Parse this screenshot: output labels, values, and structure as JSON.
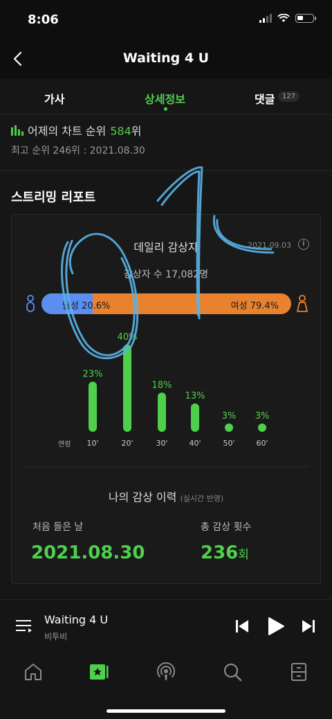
{
  "status_bar": {
    "time": "8:06"
  },
  "header": {
    "title": "Waiting 4 U"
  },
  "tabs": [
    {
      "label": "가사",
      "active": false
    },
    {
      "label": "상세정보",
      "active": true
    },
    {
      "label": "댓글",
      "active": false,
      "count": "127"
    }
  ],
  "chart_rank": {
    "prefix": "어제의 차트 순위",
    "rank": "584",
    "suffix": "위",
    "best": "최고 순위 246위 : 2021.08.30"
  },
  "streaming_report": {
    "title": "스트리밍 리포트",
    "daily": {
      "title": "데일리 감상자",
      "date": "2021.09.03",
      "listeners": "감상자 수 17,082명",
      "male_label": "남성 20.6%",
      "female_label": "여성 79.4%",
      "male_percent": 20.6,
      "female_percent": 79.4
    },
    "age_axis_label": "연령",
    "age_groups": [
      {
        "age": "10'",
        "percent": "23%",
        "value": 23
      },
      {
        "age": "20'",
        "percent": "40%",
        "value": 40
      },
      {
        "age": "30'",
        "percent": "18%",
        "value": 18
      },
      {
        "age": "40'",
        "percent": "13%",
        "value": 13
      },
      {
        "age": "50'",
        "percent": "3%",
        "value": 3
      },
      {
        "age": "60'",
        "percent": "3%",
        "value": 3
      }
    ],
    "history": {
      "title": "나의 감상 이력",
      "note": "(실시간 반영)",
      "first_label": "처음 들은 날",
      "first_value": "2021.08.30",
      "total_label": "총 감상 횟수",
      "total_value": "236",
      "total_unit": "회"
    }
  },
  "player": {
    "title": "Waiting 4 U",
    "artist": "비투비"
  },
  "colors": {
    "accent": "#4fd04d",
    "male": "#5b8ef0",
    "female": "#e8822f",
    "scribble": "#5ab4e8"
  },
  "nav": [
    "home-icon",
    "library-icon",
    "podcast-icon",
    "search-icon",
    "storage-icon"
  ]
}
